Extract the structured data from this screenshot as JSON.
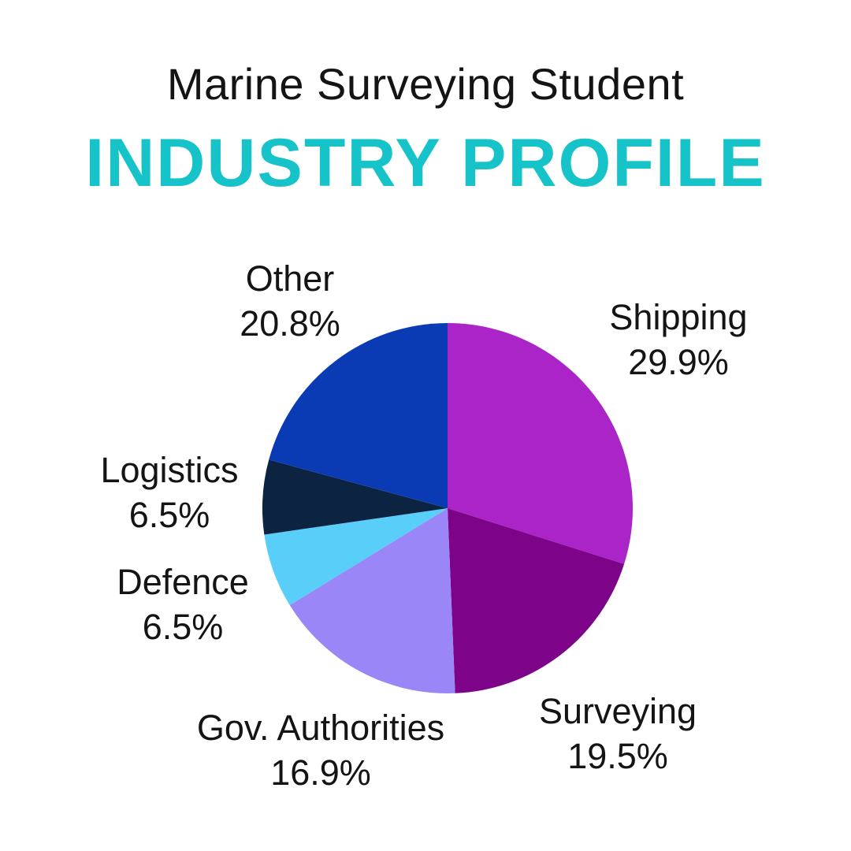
{
  "header": {
    "title": "Marine Surveying Student",
    "subtitle": "INDUSTRY PROFILE",
    "subtitle_color": "#16C3C9",
    "text_color": "#141414"
  },
  "chart_data": {
    "type": "pie",
    "title": "Marine Surveying Student Industry Profile",
    "direction": "clockwise",
    "start_angle_deg": 0,
    "legend_position": "labels-around-pie",
    "slices": [
      {
        "label": "Shipping",
        "value": 29.9,
        "pct_label": "29.9%",
        "color": "#AB24C8"
      },
      {
        "label": "Surveying",
        "value": 19.5,
        "pct_label": "19.5%",
        "color": "#7D0389"
      },
      {
        "label": "Gov. Authorities",
        "value": 16.9,
        "pct_label": "16.9%",
        "color": "#9A86F6"
      },
      {
        "label": "Defence",
        "value": 6.5,
        "pct_label": "6.5%",
        "color": "#58CEF8"
      },
      {
        "label": "Logistics",
        "value": 6.5,
        "pct_label": "6.5%",
        "color": "#0D2342"
      },
      {
        "label": "Other",
        "value": 20.8,
        "pct_label": "20.8%",
        "color": "#0B3BB4"
      }
    ]
  }
}
